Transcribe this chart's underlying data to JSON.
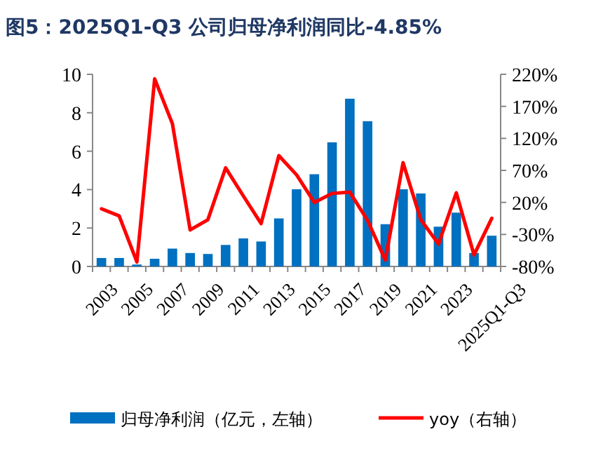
{
  "chart_data": {
    "type": "bar",
    "title": "图5：2025Q1-Q3 公司归母净利润同比-4.85%",
    "categories": [
      "2003",
      null,
      "2005",
      null,
      "2007",
      null,
      "2009",
      null,
      "2011",
      null,
      "2013",
      null,
      "2015",
      null,
      "2017",
      null,
      "2019",
      null,
      "2021",
      null,
      "2023",
      null,
      "2025Q1-Q3"
    ],
    "series": [
      {
        "name": "归母净利润（亿元，左轴）",
        "color": "#0070c0",
        "values": [
          0.44,
          0.44,
          0.1,
          0.4,
          0.93,
          0.7,
          0.65,
          1.12,
          1.46,
          1.3,
          2.5,
          4.02,
          4.8,
          6.46,
          8.73,
          7.56,
          2.2,
          4.02,
          3.8,
          2.07,
          2.8,
          0.7,
          1.6
        ]
      },
      {
        "name": "yoy（右轴）",
        "type": "line",
        "axis": "y2",
        "color": "#ff0000",
        "values": [
          10,
          -1,
          -73,
          213,
          143,
          -23,
          -7,
          74,
          30,
          -13,
          93,
          63,
          20,
          34,
          36,
          -8,
          -70,
          82,
          -7,
          -45,
          35,
          -62,
          -4.85
        ]
      }
    ],
    "ylim": [
      0,
      10
    ],
    "yticks": [
      0,
      2,
      4,
      6,
      8,
      10
    ],
    "y2lim": [
      -80,
      220
    ],
    "y2ticks": [
      {
        "value": -80,
        "label": "-80%"
      },
      {
        "value": -30,
        "label": "-30%"
      },
      {
        "value": 20,
        "label": "20%"
      },
      {
        "value": 70,
        "label": "70%"
      },
      {
        "value": 120,
        "label": "120%"
      },
      {
        "value": 170,
        "label": "170%"
      },
      {
        "value": 220,
        "label": "220%"
      }
    ],
    "legend": "bottom",
    "grid": false
  }
}
